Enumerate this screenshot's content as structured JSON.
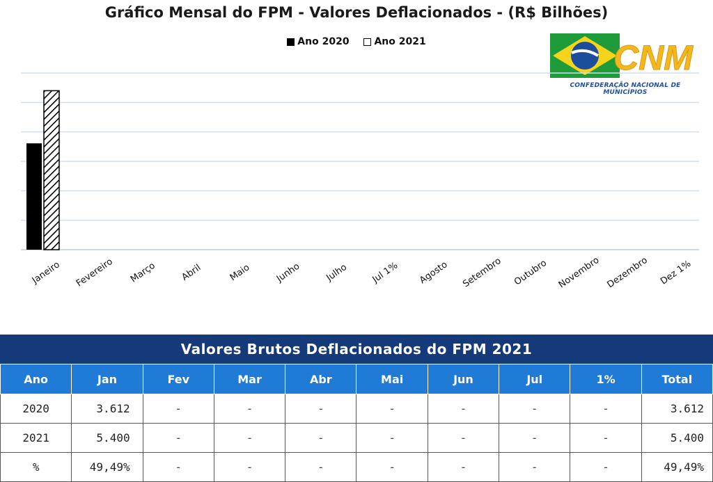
{
  "chart_data": {
    "type": "bar",
    "title": "Gráfico Mensal do FPM - Valores Deflacionados - (R$ Bilhões)",
    "categories": [
      "Janeiro",
      "Fevereiro",
      "Março",
      "Abril",
      "Maio",
      "Junho",
      "Julho",
      "Jul 1%",
      "Agosto",
      "Setembro",
      "Outubro",
      "Novembro",
      "Dezembro",
      "Dez 1%"
    ],
    "series": [
      {
        "name": "Ano 2020",
        "values": [
          3.612,
          null,
          null,
          null,
          null,
          null,
          null,
          null,
          null,
          null,
          null,
          null,
          null,
          null
        ]
      },
      {
        "name": "Ano 2021",
        "values": [
          5.4,
          null,
          null,
          null,
          null,
          null,
          null,
          null,
          null,
          null,
          null,
          null,
          null,
          null
        ]
      }
    ],
    "ylim": [
      0,
      6
    ],
    "grid": true,
    "legend": "top-center",
    "colors": {
      "Ano 2020": "#000000",
      "Ano 2021": "hatched"
    }
  },
  "logo": {
    "name": "CNM",
    "subtitle": "CONFEDERAÇÃO NACIONAL DE MUNICÍPIOS"
  },
  "table": {
    "title": "Valores Brutos Deflacionados do FPM 2021",
    "headers": [
      "Ano",
      "Jan",
      "Fev",
      "Mar",
      "Abr",
      "Mai",
      "Jun",
      "Jul",
      "1%",
      "Total"
    ],
    "rows": [
      [
        "2020",
        "3.612",
        "-",
        "-",
        "-",
        "-",
        "-",
        "-",
        "-",
        "3.612"
      ],
      [
        "2021",
        "5.400",
        "-",
        "-",
        "-",
        "-",
        "-",
        "-",
        "-",
        "5.400"
      ],
      [
        "%",
        "49,49%",
        "-",
        "-",
        "-",
        "-",
        "-",
        "-",
        "-",
        "49,49%"
      ]
    ]
  },
  "colors": {
    "table_title_bg": "#153a7a",
    "table_header_bg": "#1f7bd6",
    "grid": "#cfdff0"
  }
}
